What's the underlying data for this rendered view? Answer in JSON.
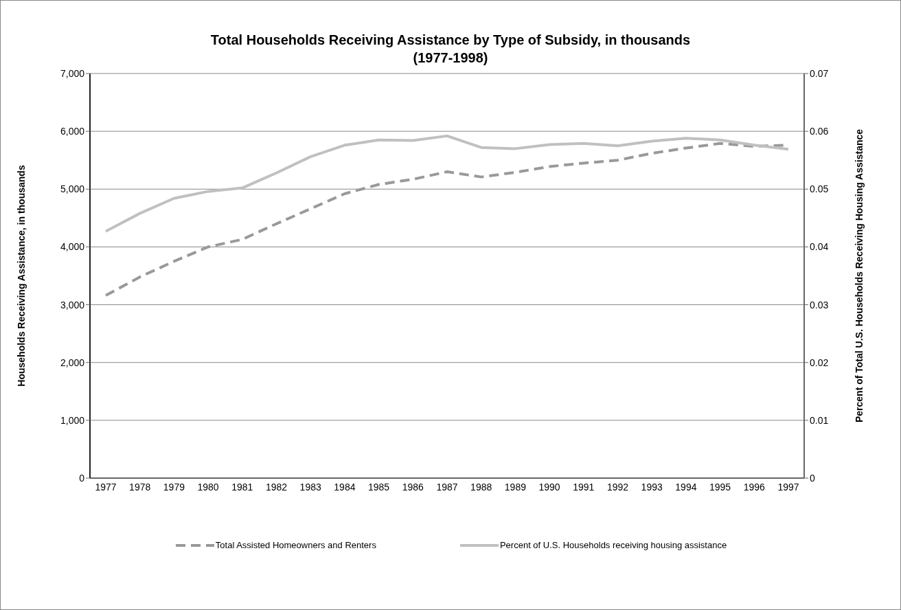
{
  "chart_data": {
    "type": "line",
    "title": "Total Households Receiving Assistance by Type of Subsidy, in thousands\n(1977-1998)",
    "ylabel": "Households Receiving Assistance, in thousands",
    "y2label": "Percent of Total U.S. Households Receiving Housing Assistance",
    "categories": [
      "1977",
      "1978",
      "1979",
      "1980",
      "1981",
      "1982",
      "1983",
      "1984",
      "1985",
      "1986",
      "1987",
      "1988",
      "1989",
      "1990",
      "1991",
      "1992",
      "1993",
      "1994",
      "1995",
      "1996",
      "1997"
    ],
    "series": [
      {
        "name": "Total Assisted Homeowners and Renters",
        "color": "#999999",
        "line_style": "dashed",
        "values": [
          3160,
          3480,
          3750,
          4000,
          4130,
          4400,
          4660,
          4920,
          5080,
          5170,
          5300,
          5210,
          5290,
          5390,
          5450,
          5500,
          5620,
          5710,
          5790,
          5740,
          5760
        ]
      },
      {
        "name": "Percent of U.S. Households receiving housing assistance",
        "color": "#c0c0c0",
        "line_style": "solid",
        "axis": "y2",
        "values": [
          0.0427,
          0.0458,
          0.0484,
          0.0496,
          0.0502,
          0.0528,
          0.0556,
          0.0576,
          0.0585,
          0.0584,
          0.0592,
          0.0572,
          0.057,
          0.0577,
          0.0579,
          0.0575,
          0.0583,
          0.0588,
          0.0585,
          0.0576,
          0.0569
        ]
      }
    ],
    "ylim": [
      0,
      7000
    ],
    "yticks": [
      {
        "value": 0,
        "label": "0"
      },
      {
        "value": 1000,
        "label": "1,000"
      },
      {
        "value": 2000,
        "label": "2,000"
      },
      {
        "value": 3000,
        "label": "3,000"
      },
      {
        "value": 4000,
        "label": "4,000"
      },
      {
        "value": 5000,
        "label": "5,000"
      },
      {
        "value": 6000,
        "label": "6,000"
      },
      {
        "value": 7000,
        "label": "7,000"
      }
    ],
    "y2lim": [
      0,
      0.07
    ],
    "y2ticks": [
      0,
      0.01,
      0.02,
      0.03,
      0.04,
      0.05,
      0.06,
      0.07
    ],
    "grid": "y",
    "legend": "bottom",
    "marker": "none"
  }
}
